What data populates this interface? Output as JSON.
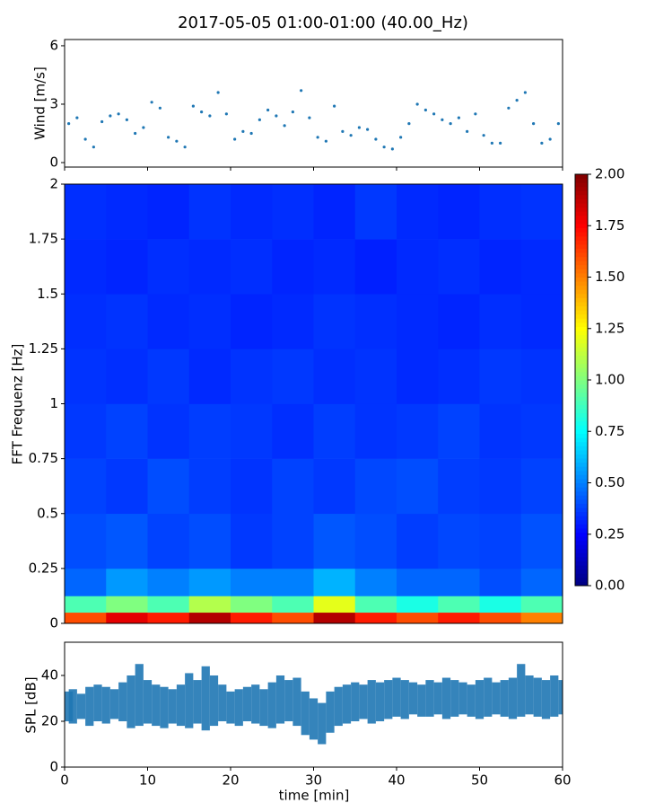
{
  "chart_data": [
    {
      "type": "scatter",
      "title": "2017-05-05 01:00-01:00 (40.00_Hz)",
      "y_label": "Wind [m/s]",
      "color": "#1f77b4",
      "x": [
        0.5,
        1.5,
        2.5,
        3.5,
        4.5,
        5.5,
        6.5,
        7.5,
        8.5,
        9.5,
        10.5,
        11.5,
        12.5,
        13.5,
        14.5,
        15.5,
        16.5,
        17.5,
        18.5,
        19.5,
        20.5,
        21.5,
        22.5,
        23.5,
        24.5,
        25.5,
        26.5,
        27.5,
        28.5,
        29.5,
        30.5,
        31.5,
        32.5,
        33.5,
        34.5,
        35.5,
        36.5,
        37.5,
        38.5,
        39.5,
        40.5,
        41.5,
        42.5,
        43.5,
        44.5,
        45.5,
        46.5,
        47.5,
        48.5,
        49.5,
        50.5,
        51.5,
        52.5,
        53.5,
        54.5,
        55.5,
        56.5,
        57.5,
        58.5,
        59.5
      ],
      "values": [
        2.0,
        2.3,
        1.2,
        0.8,
        2.1,
        2.4,
        2.5,
        2.2,
        1.5,
        1.8,
        3.1,
        2.8,
        1.3,
        1.1,
        0.8,
        2.9,
        2.6,
        2.4,
        3.6,
        2.5,
        1.2,
        1.6,
        1.5,
        2.2,
        2.7,
        2.4,
        1.9,
        2.6,
        3.7,
        2.3,
        1.3,
        1.1,
        2.9,
        1.6,
        1.4,
        1.8,
        1.7,
        1.2,
        0.8,
        0.7,
        1.3,
        2.0,
        3.0,
        2.7,
        2.5,
        2.2,
        2.0,
        2.3,
        1.6,
        2.5,
        1.4,
        1.0,
        1.0,
        2.8,
        3.2,
        3.6,
        2.0,
        1.0,
        1.2,
        2.0
      ],
      "xlim": [
        0,
        60
      ],
      "xticks": [
        0,
        10,
        20,
        30,
        40,
        50,
        60
      ],
      "ylim": [
        -0.23,
        6.32
      ],
      "yticks": [
        0,
        3,
        6
      ]
    },
    {
      "type": "heatmap",
      "y_label": "FFT Frequenz [Hz]",
      "colormap": "jet",
      "clim": [
        0,
        2
      ],
      "x_bins": [
        0,
        5,
        10,
        15,
        20,
        25,
        30,
        35,
        40,
        45,
        50,
        55,
        60
      ],
      "y_bins": [
        0,
        0.05,
        0.125,
        0.25,
        0.5,
        0.75,
        1,
        1.25,
        1.5,
        1.75,
        2
      ],
      "values": [
        [
          1.6,
          1.8,
          1.7,
          1.9,
          1.7,
          1.6,
          1.9,
          1.7,
          1.6,
          1.7,
          1.6,
          1.5
        ],
        [
          0.9,
          1.0,
          0.9,
          1.1,
          1.0,
          0.9,
          1.2,
          0.9,
          0.8,
          0.9,
          0.8,
          0.9
        ],
        [
          0.45,
          0.55,
          0.5,
          0.55,
          0.5,
          0.5,
          0.6,
          0.5,
          0.45,
          0.45,
          0.4,
          0.45
        ],
        [
          0.4,
          0.42,
          0.38,
          0.4,
          0.36,
          0.38,
          0.42,
          0.4,
          0.37,
          0.39,
          0.38,
          0.41
        ],
        [
          0.38,
          0.36,
          0.4,
          0.37,
          0.35,
          0.38,
          0.36,
          0.39,
          0.4,
          0.37,
          0.36,
          0.38
        ],
        [
          0.36,
          0.38,
          0.35,
          0.37,
          0.36,
          0.34,
          0.37,
          0.35,
          0.36,
          0.38,
          0.35,
          0.36
        ],
        [
          0.35,
          0.34,
          0.36,
          0.33,
          0.35,
          0.36,
          0.34,
          0.35,
          0.33,
          0.34,
          0.36,
          0.35
        ],
        [
          0.34,
          0.35,
          0.33,
          0.34,
          0.32,
          0.33,
          0.35,
          0.34,
          0.33,
          0.32,
          0.34,
          0.33
        ],
        [
          0.33,
          0.32,
          0.34,
          0.33,
          0.34,
          0.32,
          0.33,
          0.31,
          0.33,
          0.34,
          0.32,
          0.33
        ],
        [
          0.34,
          0.33,
          0.32,
          0.35,
          0.33,
          0.34,
          0.32,
          0.36,
          0.33,
          0.32,
          0.34,
          0.35
        ]
      ],
      "ylim": [
        0,
        2
      ],
      "yticks": [
        0,
        0.25,
        0.5,
        0.75,
        1,
        1.25,
        1.5,
        1.75,
        2
      ],
      "colorbar_ticks": [
        {
          "value": 0,
          "label": "0.00"
        },
        {
          "value": 0.25,
          "label": "0.25"
        },
        {
          "value": 0.5,
          "label": "0.50"
        },
        {
          "value": 0.75,
          "label": "0.75"
        },
        {
          "value": 1,
          "label": "1.00"
        },
        {
          "value": 1.25,
          "label": "1.25"
        },
        {
          "value": 1.5,
          "label": "1.50"
        },
        {
          "value": 1.75,
          "label": "1.75"
        },
        {
          "value": 2,
          "label": "2.00"
        }
      ]
    },
    {
      "type": "range",
      "y_label": "SPL [dB]",
      "x_label": "time [min]",
      "color": "#1f77b4",
      "x": [
        0,
        1,
        2,
        3,
        4,
        5,
        6,
        7,
        8,
        9,
        10,
        11,
        12,
        13,
        14,
        15,
        16,
        17,
        18,
        19,
        20,
        21,
        22,
        23,
        24,
        25,
        26,
        27,
        28,
        29,
        30,
        31,
        32,
        33,
        34,
        35,
        36,
        37,
        38,
        39,
        40,
        41,
        42,
        43,
        44,
        45,
        46,
        47,
        48,
        49,
        50,
        51,
        52,
        53,
        54,
        55,
        56,
        57,
        58,
        59,
        60
      ],
      "series": [
        {
          "values": [
            20,
            19,
            21,
            18,
            20,
            19,
            21,
            20,
            17,
            18,
            19,
            18,
            17,
            19,
            18,
            17,
            19,
            16,
            18,
            20,
            19,
            18,
            20,
            19,
            18,
            17,
            19,
            20,
            18,
            14,
            12,
            10,
            15,
            18,
            19,
            20,
            21,
            19,
            20,
            21,
            22,
            21,
            23,
            22,
            22,
            23,
            21,
            22,
            23,
            22,
            21,
            22,
            23,
            22,
            21,
            22,
            23,
            22,
            21,
            22,
            23
          ]
        },
        {
          "values": [
            33,
            34,
            32,
            35,
            36,
            35,
            34,
            37,
            40,
            45,
            38,
            36,
            35,
            34,
            36,
            41,
            38,
            44,
            40,
            36,
            33,
            34,
            35,
            36,
            34,
            37,
            40,
            38,
            39,
            33,
            30,
            28,
            33,
            35,
            36,
            37,
            36,
            38,
            37,
            38,
            39,
            38,
            37,
            36,
            38,
            37,
            39,
            38,
            37,
            36,
            38,
            39,
            37,
            38,
            39,
            45,
            40,
            39,
            38,
            40,
            38
          ]
        }
      ],
      "xlim": [
        0,
        60
      ],
      "xticks": [
        0,
        10,
        20,
        30,
        40,
        50,
        60
      ],
      "ylim": [
        0,
        54.5
      ],
      "yticks": [
        0,
        20,
        40
      ]
    }
  ]
}
